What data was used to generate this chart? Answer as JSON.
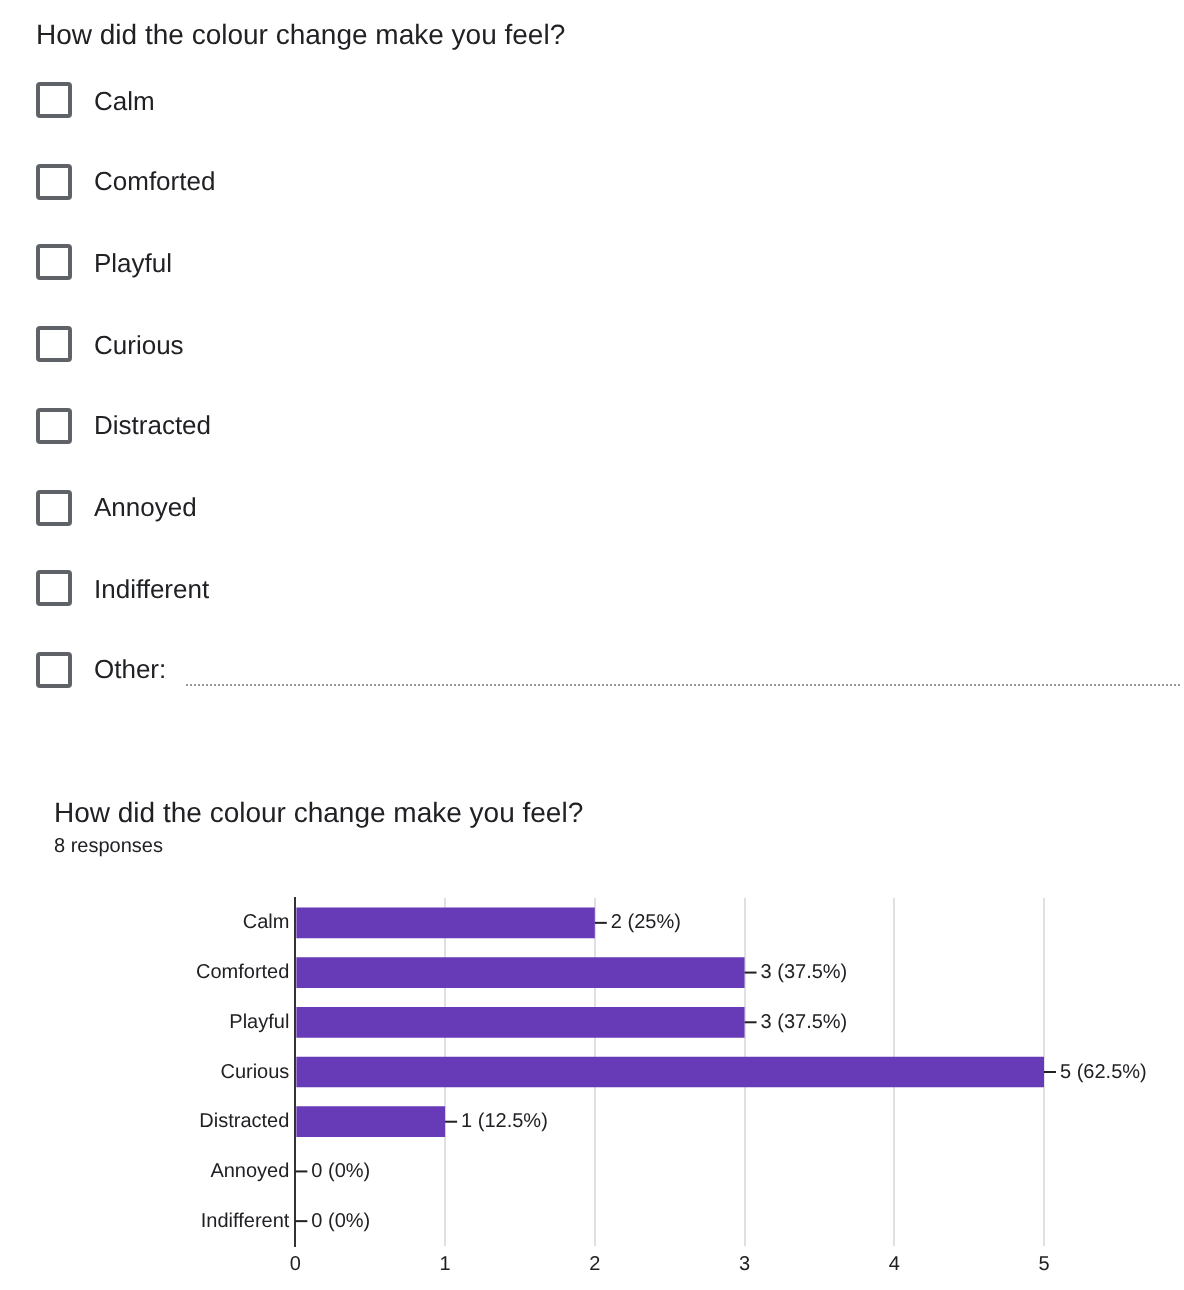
{
  "chart_data": {
    "type": "bar",
    "orientation": "horizontal",
    "title": "How did the colour change make you feel?",
    "subtitle": "8 responses",
    "annotations": [
      "How did the colour change make you feel?",
      "Calm",
      "Comforted",
      "Playful",
      "Curious",
      "Distracted",
      "Annoyed",
      "Indifferent",
      "Other:"
    ],
    "categories": [
      "Calm",
      "Comforted",
      "Playful",
      "Curious",
      "Distracted",
      "Annoyed",
      "Indifferent"
    ],
    "values": [
      2,
      3,
      3,
      5,
      1,
      0,
      0
    ],
    "color": "#673ab7",
    "value_labels": [
      "2 (25%)",
      "3 (37.5%)",
      "3 (37.5%)",
      "5 (62.5%)",
      "1 (12.5%)",
      "0 (0%)",
      "0 (0%)"
    ],
    "xlim": [
      0,
      5
    ],
    "xticks": [
      0,
      1,
      2,
      3,
      4,
      5
    ],
    "grid": "x",
    "legend": false
  }
}
